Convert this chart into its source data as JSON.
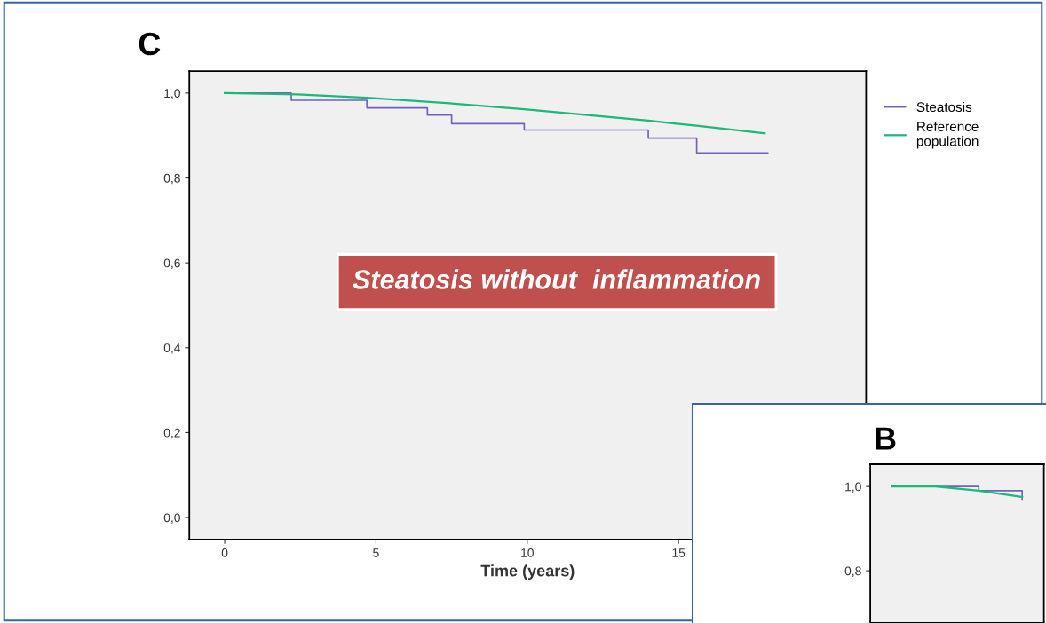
{
  "chart_data": [
    {
      "type": "step",
      "title": "C",
      "xlabel": "Time (years)",
      "xlim": [
        -1.17,
        21.2
      ],
      "xticks": [
        0,
        5,
        10,
        15
      ],
      "ylim": [
        -0.052,
        1.052
      ],
      "yticks": [
        {
          "value": 0,
          "label": "0,0"
        },
        {
          "value": 0.2,
          "label": "0,2"
        },
        {
          "value": 0.4,
          "label": "0,4"
        },
        {
          "value": 0.6,
          "label": "0,6"
        },
        {
          "value": 0.8,
          "label": "0,8"
        },
        {
          "value": 1,
          "label": "1,0"
        }
      ],
      "legend": "top right",
      "grid": false,
      "series": [
        {
          "name": "Steatosis",
          "color": "#6a63c0",
          "x": [
            0,
            2.2,
            4.7,
            6.7,
            7.5,
            9.9,
            14.0,
            15.6,
            17.95
          ],
          "values": [
            1.0,
            0.983,
            0.965,
            0.948,
            0.928,
            0.913,
            0.894,
            0.859,
            0.859
          ]
        },
        {
          "name": "Reference population",
          "type": "line",
          "color": "#1db77a",
          "x": [
            0,
            2.4,
            4.7,
            7.6,
            9.9,
            14.0,
            15.6,
            17.85
          ],
          "values": [
            1.0,
            0.997,
            0.989,
            0.975,
            0.962,
            0.935,
            0.923,
            0.905
          ]
        }
      ],
      "annotations": [
        "Steatosis without  inflammation"
      ]
    },
    {
      "type": "step",
      "title": "B",
      "categories": [
        null,
        null,
        null,
        null
      ],
      "ylim": [
        0.676,
        1.053
      ],
      "yticks": [
        {
          "value": 0.8,
          "label": "0,8"
        },
        {
          "value": 1,
          "label": "1,0"
        }
      ],
      "tick_labels": "y",
      "grid": false,
      "series": [
        {
          "color": "#6a63c0",
          "values": [
            1.0,
            1.0,
            0.99,
            0.97
          ]
        },
        {
          "type": "line",
          "color": "#1db77a",
          "values": [
            1.0,
            1.0,
            0.99,
            0.975
          ]
        }
      ]
    }
  ]
}
